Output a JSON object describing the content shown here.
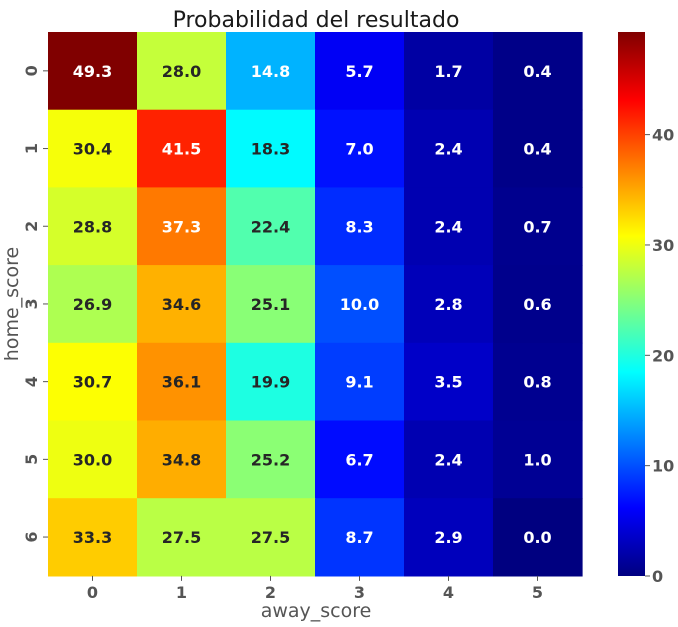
{
  "chart_data": {
    "type": "heatmap",
    "title": "Probabilidad del resultado",
    "xlabel": "away_score",
    "ylabel": "home_score",
    "x_categories": [
      "0",
      "1",
      "2",
      "3",
      "4",
      "5"
    ],
    "y_categories": [
      "0",
      "1",
      "2",
      "3",
      "4",
      "5",
      "6"
    ],
    "values": [
      [
        49.3,
        28.0,
        14.8,
        5.7,
        1.7,
        0.4
      ],
      [
        30.4,
        41.5,
        18.3,
        7.0,
        2.4,
        0.4
      ],
      [
        28.8,
        37.3,
        22.4,
        8.3,
        2.4,
        0.7
      ],
      [
        26.9,
        34.6,
        25.1,
        10.0,
        2.8,
        0.6
      ],
      [
        30.7,
        36.1,
        19.9,
        9.1,
        3.5,
        0.8
      ],
      [
        30.0,
        34.8,
        25.2,
        6.7,
        2.4,
        1.0
      ],
      [
        33.3,
        27.5,
        27.5,
        8.7,
        2.9,
        0.0
      ]
    ],
    "colormap": "jet",
    "vmin": 0,
    "vmax": 49.3,
    "colorbar_ticks": [
      "0",
      "10",
      "20",
      "30",
      "40"
    ],
    "colors": {
      "dark_text": "#262626",
      "light_text": "#ffffff",
      "tick_text": "#555555"
    }
  }
}
